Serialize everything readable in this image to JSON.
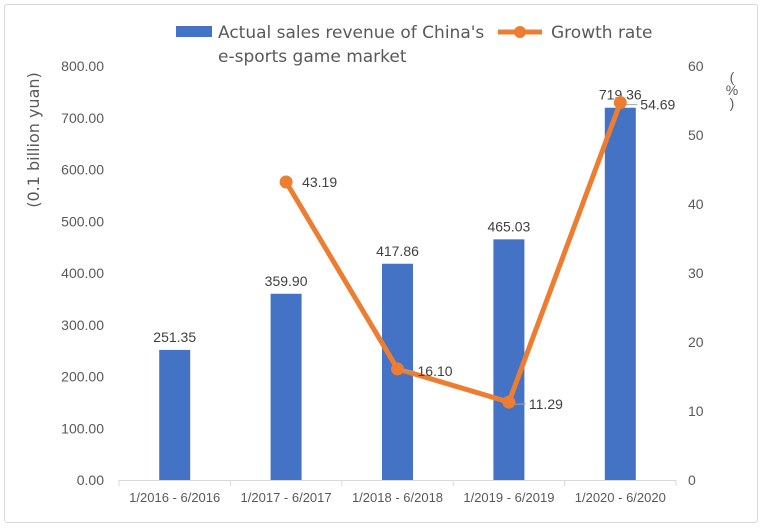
{
  "chart_data": {
    "type": "bar",
    "categories": [
      "1/2016 - 6/2016",
      "1/2017 - 6/2017",
      "1/2018 - 6/2018",
      "1/2019 - 6/2019",
      "1/2020 - 6/2020"
    ],
    "series": [
      {
        "name": "Actual sales revenue of China's e-sports game market",
        "name_lines": [
          "Actual sales revenue of China's",
          "e-sports game market"
        ],
        "type": "bar",
        "axis": "left",
        "color": "#4472C4",
        "values": [
          251.35,
          359.9,
          417.86,
          465.03,
          719.36
        ],
        "labels": [
          "251.35",
          "359.90",
          "417.86",
          "465.03",
          "719.36"
        ]
      },
      {
        "name": "Growth rate",
        "type": "line",
        "axis": "right",
        "color": "#ED7D31",
        "values": [
          null,
          43.19,
          16.1,
          11.29,
          54.69
        ],
        "labels": [
          null,
          "43.19",
          "16.10",
          "11.29",
          "54.69"
        ]
      }
    ],
    "ylabel": "(0.1 billion  yuan)",
    "y2label": "(%)",
    "ylim": [
      0,
      800
    ],
    "y2lim": [
      0,
      60
    ],
    "yticks": [
      "0.00",
      "100.00",
      "200.00",
      "300.00",
      "400.00",
      "500.00",
      "600.00",
      "700.00",
      "800.00"
    ],
    "y2ticks": [
      "0",
      "10",
      "20",
      "30",
      "40",
      "50",
      "60"
    ],
    "grid": false,
    "legend_position": "top"
  }
}
